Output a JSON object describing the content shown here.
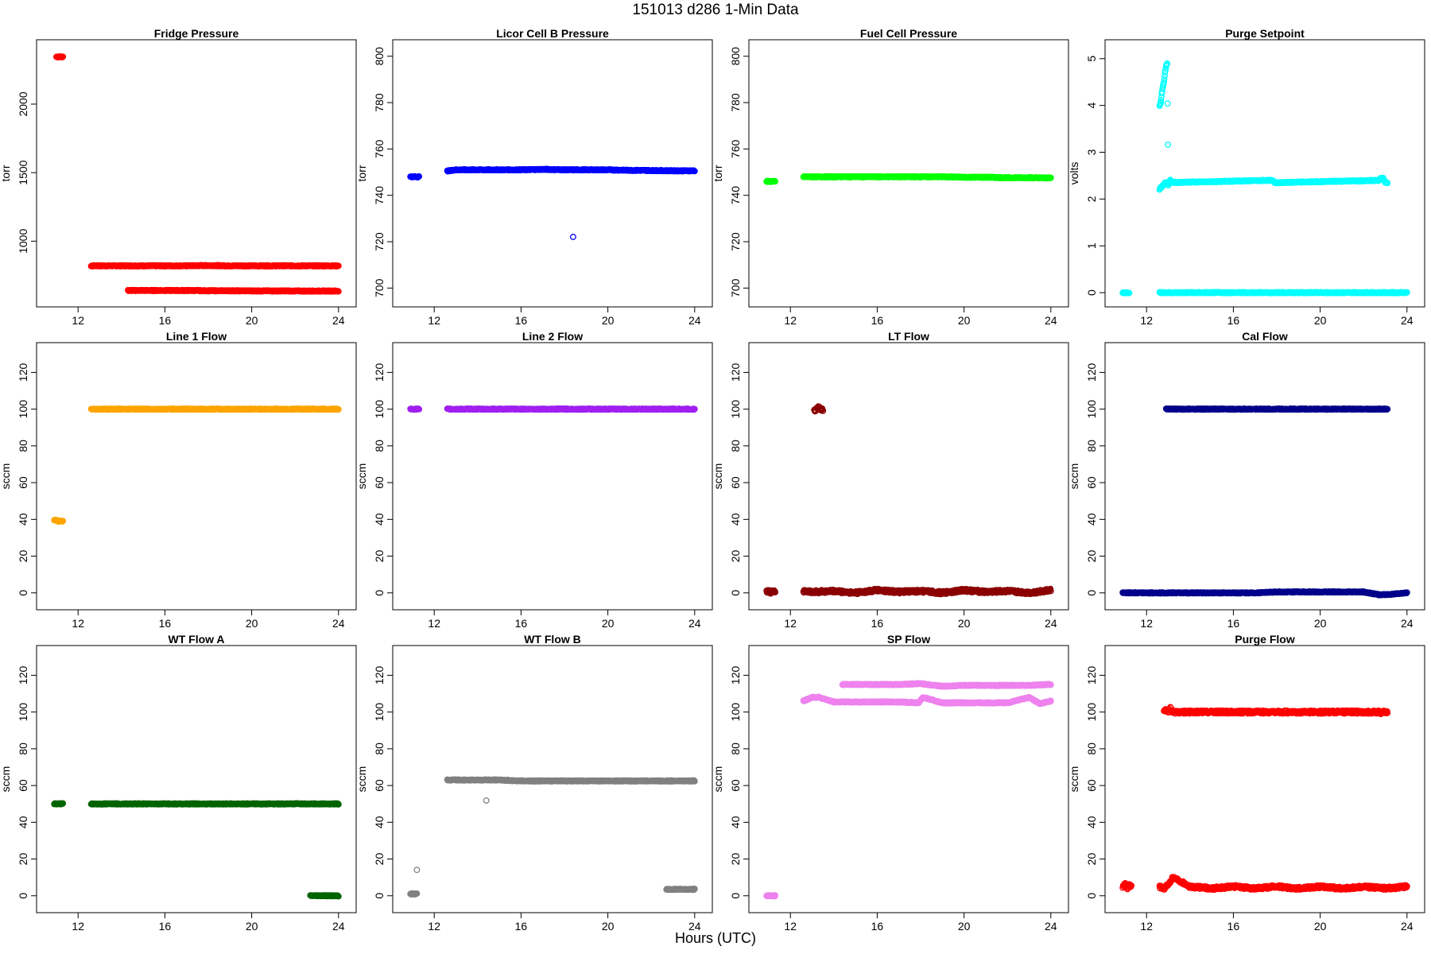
{
  "title": "151013   d286   1-Min Data",
  "xlabel": "Hours (UTC)",
  "chart_data": [
    {
      "title": "Fridge Pressure",
      "type": "scatter",
      "ylabel": "torr",
      "color": "#ff0000",
      "xlim": [
        10.6,
        24.3
      ],
      "ylim": [
        590,
        2400
      ],
      "xticks": [
        12,
        16,
        20,
        24
      ],
      "yticks": [
        1000,
        1500,
        2000
      ],
      "series": [
        {
          "x": [
            11.0,
            11.1,
            11.2,
            11.3
          ],
          "y": [
            2345,
            2345,
            2345,
            2345
          ]
        },
        {
          "x": [
            12.6,
            13.0,
            14.0,
            15.0,
            16.0,
            17.0,
            18.0,
            19.0,
            20.0,
            21.0,
            22.0,
            23.0,
            24.0
          ],
          "y": [
            820,
            820,
            820,
            820,
            820,
            820,
            822,
            820,
            820,
            820,
            820,
            820,
            820
          ]
        },
        {
          "x": [
            14.3,
            15.0,
            16.0,
            17.0,
            18.0,
            19.0,
            20.0,
            21.0,
            22.0,
            23.0,
            24.0
          ],
          "y": [
            640,
            640,
            640,
            640,
            638,
            638,
            637,
            637,
            636,
            636,
            636
          ]
        }
      ]
    },
    {
      "title": "Licor Cell B Pressure",
      "type": "scatter",
      "ylabel": "torr",
      "color": "#0000ff",
      "xlim": [
        10.6,
        24.3
      ],
      "ylim": [
        696,
        803
      ],
      "xticks": [
        12,
        16,
        20,
        24
      ],
      "yticks": [
        700,
        720,
        740,
        760,
        780,
        800
      ],
      "series": [
        {
          "x": [
            10.9,
            11.0,
            11.1,
            11.2,
            11.3
          ],
          "y": [
            748,
            748,
            748,
            748,
            748
          ]
        },
        {
          "x": [
            12.6,
            13.0,
            14.0,
            15.0,
            16.0,
            17.0,
            18.0,
            19.0,
            20.0,
            21.0,
            22.0,
            23.0,
            24.0
          ],
          "y": [
            750.5,
            751,
            751,
            751,
            751,
            751.2,
            751,
            751,
            751,
            750.8,
            750.7,
            750.6,
            750.6
          ]
        },
        {
          "x": [
            18.4
          ],
          "y": [
            722
          ]
        }
      ]
    },
    {
      "title": "Fuel Cell Pressure",
      "type": "scatter",
      "ylabel": "torr",
      "color": "#00ff00",
      "xlim": [
        10.6,
        24.3
      ],
      "ylim": [
        696,
        803
      ],
      "xticks": [
        12,
        16,
        20,
        24
      ],
      "yticks": [
        700,
        720,
        740,
        760,
        780,
        800
      ],
      "series": [
        {
          "x": [
            10.9,
            11.0,
            11.1,
            11.2,
            11.3
          ],
          "y": [
            746,
            746,
            746,
            746,
            746
          ]
        },
        {
          "x": [
            12.6,
            13.0,
            14.0,
            15.0,
            16.0,
            17.0,
            18.0,
            19.0,
            20.0,
            21.0,
            22.0,
            23.0,
            24.0
          ],
          "y": [
            748,
            748,
            748,
            748,
            748,
            748,
            748,
            748,
            747.8,
            747.8,
            747.6,
            747.6,
            747.5
          ]
        }
      ]
    },
    {
      "title": "Purge Setpoint",
      "type": "scatter",
      "ylabel": "volts",
      "color": "#00ffff",
      "xlim": [
        10.6,
        24.3
      ],
      "ylim": [
        -0.1,
        5.2
      ],
      "xticks": [
        12,
        16,
        20,
        24
      ],
      "yticks": [
        0,
        1,
        2,
        3,
        4,
        5
      ],
      "series": [
        {
          "x": [
            10.9,
            11.0,
            11.1,
            11.2
          ],
          "y": [
            0,
            0,
            0,
            0
          ]
        },
        {
          "x": [
            12.6,
            12.7,
            12.8,
            12.9,
            13.0,
            13.1,
            13.2,
            14,
            15,
            16,
            17,
            18,
            19,
            20,
            21,
            22,
            23,
            24
          ],
          "y": [
            0,
            0,
            0,
            0,
            0,
            0,
            0,
            0,
            0,
            0,
            0,
            0,
            0,
            0,
            0,
            0,
            0,
            0
          ]
        },
        {
          "x": [
            12.6,
            12.65,
            12.7,
            12.75,
            12.8,
            12.85,
            12.9,
            12.95,
            13.0,
            13.05,
            13.1
          ],
          "y": [
            4.0,
            4.05,
            4.25,
            4.4,
            4.5,
            4.7,
            4.85,
            4.9,
            2.3,
            2.35,
            2.4
          ]
        },
        {
          "x": [
            12.6,
            12.65,
            12.7,
            12.75,
            12.8,
            12.85,
            12.9,
            17.7,
            17.8,
            17.9,
            18.0,
            22.7,
            22.8,
            22.9,
            23.0,
            23.1
          ],
          "y": [
            2.2,
            2.25,
            2.25,
            2.3,
            2.3,
            2.35,
            2.35,
            2.4,
            2.4,
            2.35,
            2.35,
            2.4,
            2.45,
            2.45,
            2.35,
            2.35
          ]
        }
      ]
    },
    {
      "title": "Line 1 Flow",
      "type": "scatter",
      "ylabel": "sccm",
      "color": "#ffa500",
      "xlim": [
        10.6,
        24.3
      ],
      "ylim": [
        -4,
        131
      ],
      "xticks": [
        12,
        16,
        20,
        24
      ],
      "yticks": [
        0,
        20,
        40,
        60,
        80,
        100,
        120
      ],
      "series": [
        {
          "x": [
            10.9,
            11.0,
            11.1,
            11.2,
            11.3
          ],
          "y": [
            39.5,
            39.5,
            39,
            39,
            39
          ]
        },
        {
          "x": [
            12.6,
            13.0,
            14.0,
            15.0,
            16.0,
            17.0,
            18.0,
            19.0,
            20.0,
            21.0,
            22.0,
            23.0,
            24.0
          ],
          "y": [
            100,
            100,
            100,
            100,
            100,
            100,
            100,
            100,
            100,
            100,
            100,
            100,
            100
          ]
        }
      ]
    },
    {
      "title": "Line 2 Flow",
      "type": "scatter",
      "ylabel": "sccm",
      "color": "#a020f0",
      "xlim": [
        10.6,
        24.3
      ],
      "ylim": [
        -4,
        131
      ],
      "xticks": [
        12,
        16,
        20,
        24
      ],
      "yticks": [
        0,
        20,
        40,
        60,
        80,
        100,
        120
      ],
      "series": [
        {
          "x": [
            10.9,
            11.0,
            11.1,
            11.2,
            11.3
          ],
          "y": [
            100,
            100,
            100,
            100,
            100
          ]
        },
        {
          "x": [
            12.6,
            13.0,
            14.0,
            15.0,
            16.0,
            17.0,
            18.0,
            19.0,
            20.0,
            21.0,
            22.0,
            23.0,
            24.0
          ],
          "y": [
            100,
            100,
            100,
            100,
            100,
            100,
            100,
            100,
            100,
            100,
            100,
            100,
            100
          ]
        }
      ]
    },
    {
      "title": "LT Flow",
      "type": "scatter",
      "ylabel": "sccm",
      "color": "#8b0000",
      "xlim": [
        10.6,
        24.3
      ],
      "ylim": [
        -4,
        131
      ],
      "xticks": [
        12,
        16,
        20,
        24
      ],
      "yticks": [
        0,
        20,
        40,
        60,
        80,
        100,
        120
      ],
      "series": [
        {
          "x": [
            10.9,
            11.0,
            11.1,
            11.2,
            11.3
          ],
          "y": [
            0.5,
            1,
            0,
            1.5,
            0.5
          ]
        },
        {
          "x": [
            12.6,
            13.0,
            14.0,
            15.0,
            16.0,
            17.0,
            18.0,
            19.0,
            20.0,
            21.0,
            22.0,
            23.0,
            24.0
          ],
          "y": [
            1,
            0.5,
            1,
            0,
            1.5,
            0.5,
            1,
            0,
            1.5,
            0.5,
            1,
            0,
            1.5
          ]
        },
        {
          "x": [
            13.1,
            13.2,
            13.3,
            13.4,
            13.5
          ],
          "y": [
            99,
            100,
            101,
            100,
            99.5
          ]
        }
      ]
    },
    {
      "title": "Cal Flow",
      "type": "scatter",
      "ylabel": "sccm",
      "color": "#00008b",
      "xlim": [
        10.6,
        24.3
      ],
      "ylim": [
        -4,
        131
      ],
      "xticks": [
        12,
        16,
        20,
        24
      ],
      "yticks": [
        0,
        20,
        40,
        60,
        80,
        100,
        120
      ],
      "series": [
        {
          "x": [
            10.9,
            11.0,
            11.1,
            11.2,
            11.3,
            12.6,
            12.7,
            12.8,
            13.3,
            14,
            15,
            16,
            17,
            18,
            19,
            20,
            21,
            22,
            22.7,
            23,
            24
          ],
          "y": [
            0,
            0,
            0,
            0,
            0,
            0,
            0,
            0,
            0,
            0,
            0,
            0,
            0,
            0.5,
            0.5,
            0.5,
            0.5,
            0.5,
            -1,
            -1,
            0
          ]
        },
        {
          "x": [
            12.9,
            13.0,
            13.1,
            13.2,
            13.3,
            17.7,
            17.8,
            17.9,
            18.0,
            22.7,
            22.8,
            22.9,
            23.0,
            23.1
          ],
          "y": [
            100,
            100,
            100,
            100,
            100,
            100,
            100,
            100,
            100,
            100,
            100,
            100,
            100,
            100
          ]
        }
      ]
    },
    {
      "title": "WT Flow A",
      "type": "scatter",
      "ylabel": "sccm",
      "color": "#006400",
      "xlim": [
        10.6,
        24.3
      ],
      "ylim": [
        -4,
        131
      ],
      "xticks": [
        12,
        16,
        20,
        24
      ],
      "yticks": [
        0,
        20,
        40,
        60,
        80,
        100,
        120
      ],
      "series": [
        {
          "x": [
            10.9,
            11.0,
            11.1,
            11.2,
            11.3
          ],
          "y": [
            50,
            50,
            50,
            50,
            50
          ]
        },
        {
          "x": [
            12.6,
            13.0,
            14.0,
            15.0,
            16.0,
            17.0,
            18.0,
            19.0,
            20.0,
            21.0,
            22.0,
            23.0,
            24.0
          ],
          "y": [
            50,
            50,
            50,
            50,
            50,
            50,
            50,
            50,
            50,
            50,
            50,
            50,
            50
          ]
        },
        {
          "x": [
            22.7,
            23.0,
            23.5,
            24.0
          ],
          "y": [
            0,
            0,
            0,
            0
          ]
        }
      ]
    },
    {
      "title": "WT Flow B",
      "type": "scatter",
      "ylabel": "sccm",
      "color": "#808080",
      "xlim": [
        10.6,
        24.3
      ],
      "ylim": [
        -4,
        131
      ],
      "xticks": [
        12,
        16,
        20,
        24
      ],
      "yticks": [
        0,
        20,
        40,
        60,
        80,
        100,
        120
      ],
      "series": [
        {
          "x": [
            10.9,
            11.0,
            11.1,
            11.2
          ],
          "y": [
            1,
            1,
            1,
            1
          ]
        },
        {
          "x": [
            11.2
          ],
          "y": [
            14
          ]
        },
        {
          "x": [
            12.6,
            13.0,
            14.0,
            15.0,
            16.0,
            17.0,
            18.0,
            19.0,
            20.0,
            21.0,
            22.0,
            23.0,
            24.0
          ],
          "y": [
            63,
            63,
            63,
            63,
            62.5,
            62.5,
            62.5,
            62.5,
            62.5,
            62.5,
            62.5,
            62.5,
            62.5
          ]
        },
        {
          "x": [
            14.4
          ],
          "y": [
            52
          ]
        },
        {
          "x": [
            22.7,
            23.0,
            23.5,
            24.0
          ],
          "y": [
            3.5,
            3.5,
            3.5,
            3.5
          ]
        }
      ]
    },
    {
      "title": "SP Flow",
      "type": "scatter",
      "ylabel": "sccm",
      "color": "#ee82ee",
      "xlim": [
        10.6,
        24.3
      ],
      "ylim": [
        -4,
        131
      ],
      "xticks": [
        12,
        16,
        20,
        24
      ],
      "yticks": [
        0,
        20,
        40,
        60,
        80,
        100,
        120
      ],
      "series": [
        {
          "x": [
            10.9,
            11.0,
            11.1,
            11.2,
            11.3
          ],
          "y": [
            0,
            0,
            0,
            0,
            0
          ]
        },
        {
          "x": [
            12.6,
            13.0,
            13.3,
            14.0,
            15.0,
            16.0,
            17.0,
            17.9,
            18.1,
            19.0,
            20.0,
            21.0,
            22.0,
            23.0,
            23.5,
            24.0
          ],
          "y": [
            106,
            108,
            108,
            105.5,
            105.5,
            105.5,
            105.5,
            105,
            108,
            105,
            105,
            105,
            105,
            108,
            104.5,
            106
          ]
        },
        {
          "x": [
            14.4,
            15.0,
            16.0,
            17.0,
            18.0,
            19.0,
            20.0,
            21.0,
            22.0,
            23.0,
            24.0
          ],
          "y": [
            115,
            115,
            115,
            115,
            115.5,
            114,
            114.5,
            114.5,
            114.5,
            114.5,
            115
          ]
        }
      ]
    },
    {
      "title": "Purge Flow",
      "type": "scatter",
      "ylabel": "sccm",
      "color": "#ff0000",
      "xlim": [
        10.6,
        24.3
      ],
      "ylim": [
        -4,
        131
      ],
      "xticks": [
        12,
        16,
        20,
        24
      ],
      "yticks": [
        0,
        20,
        40,
        60,
        80,
        100,
        120
      ],
      "series": [
        {
          "x": [
            10.9,
            11.0,
            11.1,
            11.2,
            11.3
          ],
          "y": [
            5,
            7,
            4,
            6,
            5
          ]
        },
        {
          "x": [
            12.6,
            12.8,
            13.0,
            13.2,
            13.4,
            14,
            15,
            16,
            17,
            18,
            19,
            20,
            21,
            22,
            23,
            24
          ],
          "y": [
            5,
            4,
            6,
            10,
            9,
            5,
            4,
            5,
            4,
            5,
            4,
            5,
            4,
            5,
            4,
            5
          ]
        },
        {
          "x": [
            12.8,
            12.9,
            13.0,
            13.1,
            13.2,
            17.7,
            17.8,
            17.9,
            18.0,
            22.7,
            22.8,
            22.9,
            23.0,
            23.1
          ],
          "y": [
            100,
            101,
            100,
            102,
            100,
            100,
            100,
            100,
            100,
            100,
            99.5,
            100,
            100,
            100
          ]
        }
      ]
    }
  ]
}
